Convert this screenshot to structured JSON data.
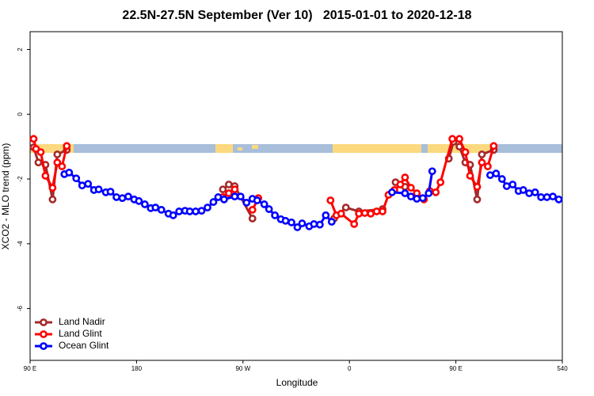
{
  "chart_data": {
    "type": "line",
    "title": "22.5N-27.5N September (Ver 10)   2015-01-01 to 2020-12-18",
    "x_label": "Longitude",
    "y_label": "XCO2 - MLO trend (ppm)",
    "xlim": [
      90,
      540
    ],
    "ylim": [
      -7.6,
      2.55
    ],
    "xticks": [
      {
        "value": 90,
        "label": "90 E"
      },
      180,
      {
        "value": 270,
        "label": "90 W"
      },
      {
        "value": 360,
        "label": "0"
      },
      {
        "value": 450,
        "label": "90 E"
      },
      540
    ],
    "yticks": [
      -6,
      -4,
      -2,
      0,
      2
    ],
    "legend": "bottom-left",
    "series": [
      {
        "name": "Land Nadir",
        "color": "#a52a2a",
        "x": [
          93,
          97,
          103,
          109,
          113,
          121,
          null,
          253,
          258,
          263,
          278,
          null,
          347,
          357,
          368,
          388,
          null,
          399,
          407,
          null,
          444,
          448,
          453,
          458,
          462,
          468,
          472,
          482
        ],
        "values": [
          -1.02,
          -1.49,
          -1.56,
          -2.63,
          -1.24,
          -1.1,
          null,
          -2.32,
          -2.17,
          -2.22,
          -3.22,
          null,
          -3.22,
          -2.88,
          -3.0,
          -2.93,
          null,
          -2.1,
          -2.24,
          null,
          -1.37,
          -0.85,
          -1.0,
          -1.49,
          -1.56,
          -2.63,
          -1.24,
          -1.1
        ]
      },
      {
        "name": "Land Glint",
        "color": "#ff0000",
        "x": [
          93,
          95,
          99,
          103,
          109,
          113,
          117,
          121,
          null,
          253,
          258,
          263,
          null,
          278,
          283,
          null,
          344,
          349,
          353,
          364,
          368,
          373,
          378,
          383,
          388,
          393,
          398,
          403,
          407,
          412,
          417,
          423,
          428,
          433,
          437,
          447,
          453,
          458,
          462,
          468,
          472,
          477,
          482
        ],
        "values": [
          -0.76,
          -1.07,
          -1.17,
          -1.9,
          -2.27,
          -1.49,
          -1.61,
          -0.98,
          null,
          -2.56,
          -2.44,
          -2.32,
          null,
          -2.95,
          -2.59,
          null,
          -2.66,
          -3.12,
          -3.07,
          -3.39,
          -3.07,
          -3.05,
          -3.07,
          -3.0,
          -3.0,
          -2.49,
          -2.34,
          -2.17,
          -1.95,
          -2.27,
          -2.44,
          -2.63,
          -2.37,
          -2.41,
          -2.1,
          -0.76,
          -0.76,
          -1.17,
          -1.9,
          -2.24,
          -1.49,
          -1.61,
          -0.98
        ]
      },
      {
        "name": "Ocean Glint",
        "color": "#0000ff",
        "x": [
          119,
          123,
          129,
          134,
          139,
          144,
          148,
          154,
          158,
          163,
          168,
          173,
          178,
          182,
          187,
          192,
          196,
          201,
          207,
          211,
          216,
          221,
          225,
          230,
          235,
          240,
          245,
          249,
          254,
          263,
          268,
          273,
          278,
          282,
          288,
          292,
          297,
          302,
          306,
          311,
          316,
          320,
          326,
          330,
          335,
          340,
          345,
          null,
          396,
          407,
          412,
          417,
          422,
          427,
          430,
          null,
          479,
          484,
          489,
          493,
          498,
          503,
          507,
          512,
          517,
          522,
          527,
          532,
          537
        ],
        "values": [
          -1.85,
          -1.8,
          -1.98,
          -2.2,
          -2.15,
          -2.34,
          -2.32,
          -2.41,
          -2.39,
          -2.56,
          -2.59,
          -2.54,
          -2.63,
          -2.68,
          -2.78,
          -2.9,
          -2.88,
          -2.95,
          -3.07,
          -3.12,
          -3.0,
          -2.98,
          -3.0,
          -3.0,
          -2.98,
          -2.88,
          -2.71,
          -2.56,
          -2.63,
          -2.54,
          -2.54,
          -2.73,
          -2.61,
          -2.66,
          -2.78,
          -2.93,
          -3.12,
          -3.24,
          -3.29,
          -3.34,
          -3.49,
          -3.37,
          -3.46,
          -3.39,
          -3.41,
          -3.12,
          -3.32,
          null,
          -2.41,
          -2.44,
          -2.54,
          -2.61,
          -2.59,
          -2.44,
          -1.76,
          null,
          -1.88,
          -1.83,
          -2.0,
          -2.22,
          -2.17,
          -2.37,
          -2.34,
          -2.44,
          -2.41,
          -2.56,
          -2.56,
          -2.54,
          -2.63
        ]
      }
    ]
  }
}
